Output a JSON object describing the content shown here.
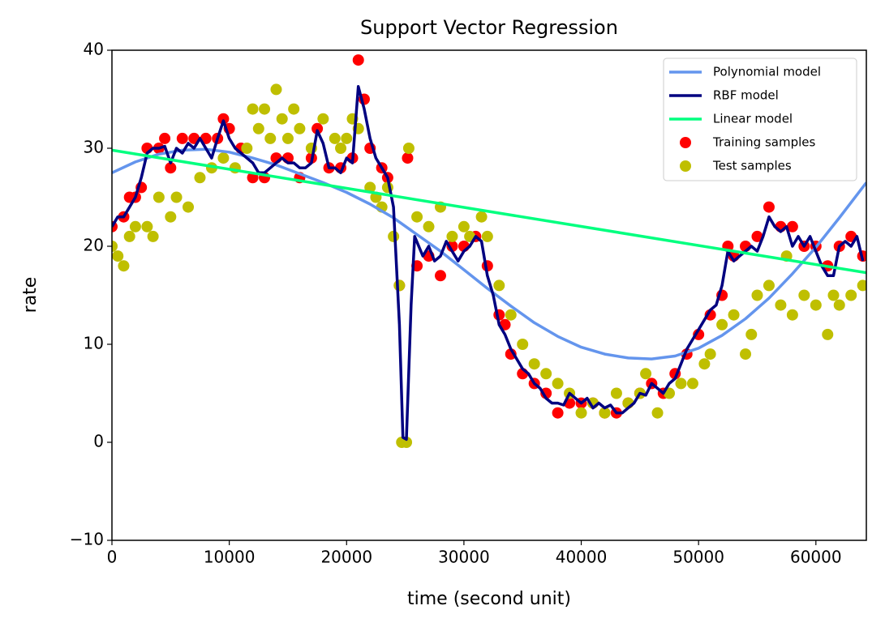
{
  "chart_data": {
    "type": "line",
    "title": "Support Vector Regression",
    "xlabel": "time (second unit)",
    "ylabel": "rate",
    "xlim": [
      0,
      64300
    ],
    "ylim": [
      -10,
      40
    ],
    "xticks": [
      0,
      10000,
      20000,
      30000,
      40000,
      50000,
      60000
    ],
    "yticks": [
      {
        "value": -10,
        "label": "−10"
      },
      0,
      10,
      20,
      30,
      40
    ],
    "legend": "upper right",
    "series": [
      {
        "name": "Training samples",
        "type": "scatter",
        "color": "#ff0000",
        "x": [
          0,
          1000,
          1500,
          2000,
          2500,
          3000,
          4000,
          4500,
          5000,
          6000,
          7000,
          8000,
          9000,
          9500,
          10000,
          11000,
          12000,
          13000,
          14000,
          15000,
          16000,
          17000,
          17500,
          18500,
          19500,
          20500,
          21000,
          21500,
          22000,
          23000,
          23500,
          24500,
          25200,
          26000,
          27000,
          28000,
          29000,
          30000,
          31000,
          32000,
          33000,
          33500,
          34000,
          35000,
          36000,
          37000,
          38000,
          39000,
          40000,
          41000,
          42000,
          43000,
          44000,
          45000,
          46000,
          47000,
          48000,
          49000,
          50000,
          51000,
          52000,
          52500,
          53000,
          54000,
          55000,
          56000,
          57000,
          58000,
          59000,
          60000,
          61000,
          62000,
          63000,
          64000
        ],
        "values": [
          22,
          23,
          25,
          25,
          26,
          30,
          30,
          31,
          28,
          31,
          31,
          31,
          31,
          33,
          32,
          30,
          27,
          27,
          29,
          29,
          27,
          29,
          32,
          28,
          28,
          29,
          39,
          35,
          30,
          28,
          27,
          16,
          29,
          18,
          19,
          17,
          20,
          20,
          21,
          18,
          13,
          12,
          9,
          7,
          6,
          5,
          3,
          4,
          4,
          4,
          3,
          3,
          4,
          5,
          6,
          5,
          7,
          9,
          11,
          13,
          15,
          20,
          19,
          20,
          21,
          24,
          22,
          22,
          20,
          20,
          18,
          20,
          21,
          19
        ]
      },
      {
        "name": "Test samples",
        "type": "scatter",
        "color": "#bfbf00",
        "x": [
          0,
          500,
          1000,
          1500,
          2000,
          3000,
          3500,
          4000,
          5000,
          5500,
          6500,
          7500,
          8500,
          9500,
          10500,
          11500,
          12000,
          12500,
          13000,
          13500,
          14000,
          14500,
          15000,
          15500,
          16000,
          17000,
          18000,
          19000,
          19500,
          20000,
          20500,
          21000,
          22000,
          22500,
          23000,
          23500,
          24000,
          24500,
          24700,
          25100,
          25300,
          26000,
          27000,
          28000,
          29000,
          30000,
          30500,
          31500,
          32000,
          33000,
          34000,
          35000,
          36000,
          37000,
          38000,
          39000,
          40000,
          41000,
          42000,
          43000,
          44000,
          45000,
          45500,
          46500,
          47500,
          48500,
          49500,
          50500,
          51000,
          52000,
          53000,
          54000,
          54500,
          55000,
          56000,
          57000,
          57500,
          58000,
          59000,
          60000,
          61000,
          61500,
          62000,
          63000,
          64000
        ],
        "values": [
          20,
          19,
          18,
          21,
          22,
          22,
          21,
          25,
          23,
          25,
          24,
          27,
          28,
          29,
          28,
          30,
          34,
          32,
          34,
          31,
          36,
          33,
          31,
          34,
          32,
          30,
          33,
          31,
          30,
          31,
          33,
          32,
          26,
          25,
          24,
          26,
          21,
          16,
          0,
          0,
          30,
          23,
          22,
          24,
          21,
          22,
          21,
          23,
          21,
          16,
          13,
          10,
          8,
          7,
          6,
          5,
          3,
          4,
          3,
          5,
          4,
          5,
          7,
          3,
          5,
          6,
          6,
          8,
          9,
          12,
          13,
          9,
          11,
          15,
          16,
          14,
          19,
          13,
          15,
          14,
          11,
          15,
          14,
          15,
          16
        ]
      },
      {
        "name": "Polynomial model",
        "type": "line",
        "color": "#6495ed",
        "x": [
          0,
          2000,
          4000,
          6000,
          8000,
          10000,
          12000,
          14000,
          16000,
          18000,
          20000,
          22000,
          24000,
          26000,
          28000,
          30000,
          32000,
          34000,
          36000,
          38000,
          40000,
          42000,
          44000,
          46000,
          48000,
          50000,
          52000,
          54000,
          56000,
          58000,
          60000,
          62000,
          64300
        ],
        "values": [
          27.5,
          28.6,
          29.4,
          29.8,
          29.9,
          29.6,
          29,
          28.3,
          27.4,
          26.5,
          25.5,
          24.3,
          22.9,
          21.2,
          19.5,
          17.6,
          15.7,
          13.9,
          12.2,
          10.8,
          9.7,
          9,
          8.6,
          8.5,
          8.8,
          9.6,
          10.9,
          12.6,
          14.7,
          17.2,
          19.9,
          22.9,
          26.5
        ]
      },
      {
        "name": "RBF model",
        "type": "line",
        "color": "#000080",
        "x": [
          0,
          500,
          1000,
          1500,
          2000,
          2500,
          3000,
          3500,
          4000,
          4500,
          5000,
          5500,
          6000,
          6500,
          7000,
          7500,
          8000,
          8500,
          9000,
          9500,
          10000,
          10500,
          11000,
          11500,
          12000,
          12500,
          13000,
          13500,
          14000,
          14500,
          15000,
          15500,
          16000,
          16500,
          17000,
          17500,
          18000,
          18500,
          19000,
          19500,
          20000,
          20500,
          21000,
          21500,
          22000,
          22500,
          23000,
          23500,
          24000,
          24500,
          24800,
          25100,
          25500,
          25800,
          26500,
          27000,
          27500,
          28000,
          28500,
          29000,
          29500,
          30000,
          30500,
          31000,
          31500,
          32000,
          32500,
          33000,
          33500,
          34000,
          34500,
          35000,
          35500,
          36000,
          36500,
          37000,
          37500,
          38000,
          38500,
          39000,
          39500,
          40000,
          40500,
          41000,
          41500,
          42000,
          42500,
          43000,
          43500,
          44000,
          44500,
          45000,
          45500,
          46000,
          46500,
          47000,
          47500,
          48000,
          48500,
          49000,
          49500,
          50000,
          50500,
          51000,
          51500,
          52000,
          52500,
          53000,
          53500,
          54000,
          54500,
          55000,
          55500,
          56000,
          56500,
          57000,
          57500,
          58000,
          58500,
          59000,
          59500,
          60000,
          60500,
          61000,
          61500,
          62000,
          62500,
          63000,
          63500,
          64000
        ],
        "values": [
          22,
          23,
          23,
          24,
          25,
          27,
          29.5,
          30,
          30,
          30.2,
          28.5,
          30,
          29.5,
          30.5,
          30,
          31,
          30,
          29,
          31,
          32.8,
          31,
          30,
          29.5,
          29,
          28.5,
          27.5,
          27.5,
          28,
          28.5,
          29,
          28.5,
          28.5,
          28,
          28,
          28.5,
          31.8,
          30.5,
          28,
          28,
          27.5,
          29,
          28.5,
          36.3,
          34,
          31,
          29,
          28,
          27,
          24,
          12,
          0.5,
          0.3,
          14,
          21,
          19,
          20,
          18.5,
          19,
          20.5,
          19.5,
          18.5,
          19.5,
          20,
          21,
          20.5,
          17,
          15,
          12,
          11,
          9.5,
          8.5,
          7.5,
          7,
          6,
          5.5,
          4.5,
          4,
          4,
          3.8,
          5,
          4.5,
          4,
          4.5,
          3.5,
          4,
          3.5,
          3.8,
          3,
          3,
          3.5,
          4,
          5,
          4.8,
          6,
          5.5,
          5,
          6,
          6.5,
          8,
          9.5,
          10.5,
          11.5,
          12.5,
          13.5,
          14,
          16,
          19.5,
          18.5,
          19,
          19.5,
          20,
          19.5,
          21,
          23,
          22,
          21.5,
          22,
          20,
          21,
          20,
          21,
          19.5,
          18,
          17,
          17,
          20,
          20.5,
          20,
          21,
          18.5
        ]
      },
      {
        "name": "Linear model",
        "type": "line",
        "color": "#00ff7f",
        "x": [
          0,
          64300
        ],
        "values": [
          29.8,
          17.3
        ]
      }
    ],
    "legend_order": [
      2,
      3,
      4,
      0,
      1
    ]
  }
}
